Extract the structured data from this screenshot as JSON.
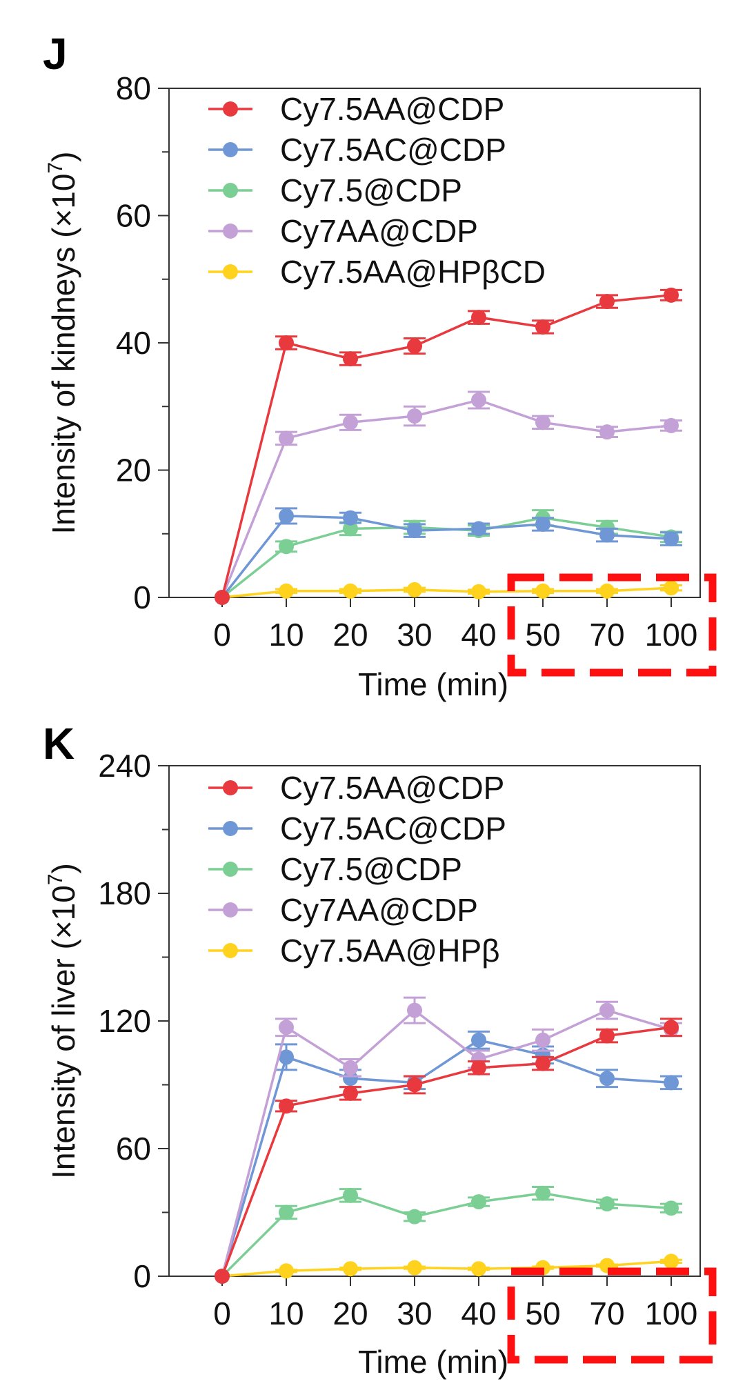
{
  "colors": {
    "red": "#e8393f",
    "blue": "#6f97d6",
    "green": "#7ccf94",
    "purple": "#c3a0d6",
    "yellow": "#ffd21e",
    "highlight": "#ff1010"
  },
  "chart_data": [
    {
      "type": "line",
      "panel_label": "J",
      "xlabel": "Time (min)",
      "ylabel": "Intensity of kindneys (×10",
      "ylabel_sup": "7",
      "ylabel_close": ")",
      "categories": [
        "0",
        "10",
        "20",
        "30",
        "40",
        "50",
        "70",
        "100"
      ],
      "ylim": [
        0,
        80
      ],
      "yticks": [
        0,
        20,
        40,
        60,
        80
      ],
      "minor_yticks": [
        10,
        30,
        50,
        70
      ],
      "legend_position": "top-left",
      "highlight_box": "categories 50 to 100",
      "series": [
        {
          "name": "Cy7.5AA@CDP",
          "color": "#e8393f",
          "values": [
            0,
            40,
            37.5,
            39.5,
            44,
            42.5,
            46.5,
            47.5
          ],
          "errors": [
            0,
            1,
            1,
            1.2,
            1,
            1,
            1,
            0.8
          ]
        },
        {
          "name": "Cy7.5AC@CDP",
          "color": "#6f97d6",
          "values": [
            0,
            12.8,
            12.5,
            10.5,
            10.8,
            11.5,
            9.8,
            9.2
          ],
          "errors": [
            0,
            1.2,
            0.8,
            1,
            0.8,
            1,
            1,
            1
          ]
        },
        {
          "name": "Cy7.5@CDP",
          "color": "#7ccf94",
          "values": [
            0,
            8,
            10.8,
            11,
            10.5,
            12.5,
            11,
            9.5
          ],
          "errors": [
            0,
            0.8,
            1,
            1,
            0.8,
            1.2,
            1,
            0.8
          ]
        },
        {
          "name": "Cy7AA@CDP",
          "color": "#c3a0d6",
          "values": [
            0,
            25,
            27.5,
            28.5,
            31,
            27.5,
            26,
            27
          ],
          "errors": [
            0,
            1,
            1.2,
            1.5,
            1.3,
            1,
            0.8,
            0.8
          ]
        },
        {
          "name": "Cy7.5AA@HPβCD",
          "color": "#ffd21e",
          "values": [
            0,
            1,
            1,
            1.2,
            0.9,
            1,
            1,
            1.5
          ],
          "errors": [
            0,
            0.3,
            0.3,
            0.3,
            0.3,
            0.3,
            0.3,
            0.4
          ]
        }
      ]
    },
    {
      "type": "line",
      "panel_label": "K",
      "xlabel": "Time (min)",
      "ylabel": "Intensity of liver (×10",
      "ylabel_sup": "7",
      "ylabel_close": ")",
      "categories": [
        "0",
        "10",
        "20",
        "30",
        "40",
        "50",
        "70",
        "100"
      ],
      "ylim": [
        0,
        240
      ],
      "yticks": [
        0,
        60,
        120,
        180,
        240
      ],
      "minor_yticks": [
        30,
        90,
        150,
        210
      ],
      "legend_position": "top-left",
      "highlight_box": "categories 50 to 100",
      "series": [
        {
          "name": "Cy7.5AA@CDP",
          "color": "#e8393f",
          "values": [
            0,
            80,
            86,
            90,
            98,
            100,
            113,
            117
          ],
          "errors": [
            0,
            2.5,
            3,
            4,
            3,
            3,
            3,
            4
          ]
        },
        {
          "name": "Cy7.5AC@CDP",
          "color": "#6f97d6",
          "values": [
            0,
            103,
            93,
            91,
            111,
            104,
            93,
            91
          ],
          "errors": [
            0,
            6,
            4,
            3,
            4,
            4,
            4,
            3
          ]
        },
        {
          "name": "Cy7.5@CDP",
          "color": "#7ccf94",
          "values": [
            0,
            30,
            38,
            28,
            35,
            39,
            34,
            32
          ],
          "errors": [
            0,
            3,
            3,
            2,
            2,
            3,
            2,
            2
          ]
        },
        {
          "name": "Cy7AA@CDP",
          "color": "#c3a0d6",
          "values": [
            0,
            117,
            98,
            125,
            102,
            111,
            125,
            116
          ],
          "errors": [
            0,
            4,
            4,
            6,
            4,
            5,
            4,
            3
          ]
        },
        {
          "name": "Cy7.5AA@HPβ",
          "color": "#ffd21e",
          "values": [
            0,
            2.5,
            3.5,
            4,
            3.5,
            4,
            5,
            7
          ],
          "errors": [
            0,
            0.5,
            0.5,
            0.5,
            0.5,
            0.5,
            0.5,
            0.7
          ]
        }
      ]
    }
  ]
}
